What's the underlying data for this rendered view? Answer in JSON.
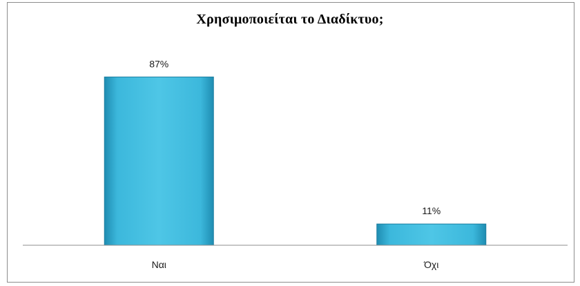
{
  "chart_data": {
    "type": "bar",
    "title": "Χρησιμοποιείται το Διαδίκτυο;",
    "categories": [
      "Ναι",
      "Όχι"
    ],
    "values": [
      87,
      11
    ],
    "data_labels": [
      "87%",
      "11%"
    ],
    "xlabel": "",
    "ylabel": "",
    "unit": "%",
    "ylim": [
      0,
      100
    ],
    "grid": false,
    "legend": "none",
    "bar_color": "#3cb8dc",
    "bar_edge_color": "#1f7fa0",
    "axis_color": "#8c8c8c"
  }
}
